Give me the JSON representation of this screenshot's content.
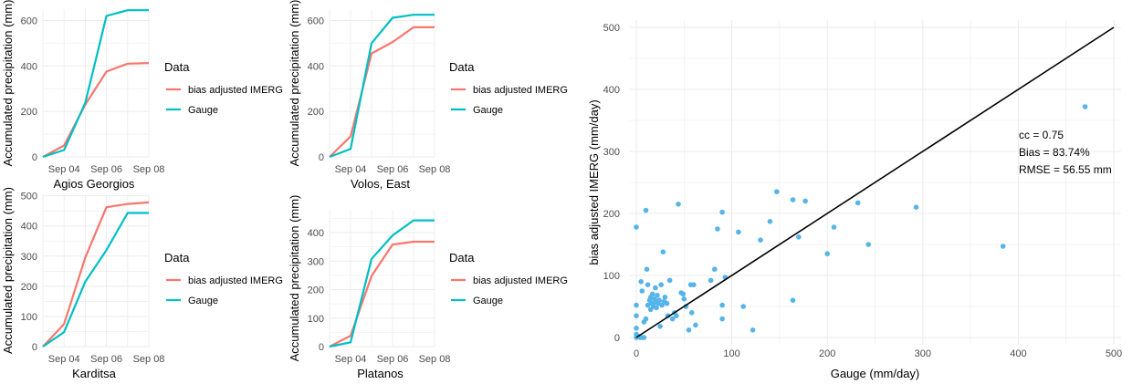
{
  "colors": {
    "imerg": "#f8766d",
    "gauge": "#00bfc4",
    "points": "#56b4e9",
    "line": "#000000",
    "grid": "#ebebeb"
  },
  "legend": {
    "title": "Data",
    "items": [
      "bias adjusted IMERG",
      "Gauge"
    ]
  },
  "chart_data": [
    {
      "type": "line",
      "title": "Agios Georgios",
      "ylabel": "Accumulated precipitation (mm)",
      "xlabel": "",
      "x": [
        "Sep 03",
        "Sep 04",
        "Sep 05",
        "Sep 06",
        "Sep 07",
        "Sep 08"
      ],
      "x_ticks": [
        "Sep 04",
        "Sep 06",
        "Sep 08"
      ],
      "y_ticks": [
        0,
        200,
        400,
        600
      ],
      "ylim": [
        0,
        650
      ],
      "series": [
        {
          "name": "bias adjusted IMERG",
          "values": [
            0,
            50,
            230,
            375,
            410,
            413
          ]
        },
        {
          "name": "Gauge",
          "values": [
            0,
            30,
            238,
            620,
            645,
            645
          ]
        }
      ]
    },
    {
      "type": "line",
      "title": "Volos, East",
      "ylabel": "Accumulated precipitation (mm)",
      "xlabel": "",
      "x": [
        "Sep 03",
        "Sep 04",
        "Sep 05",
        "Sep 06",
        "Sep 07",
        "Sep 08"
      ],
      "x_ticks": [
        "Sep 04",
        "Sep 06",
        "Sep 08"
      ],
      "y_ticks": [
        0,
        200,
        400,
        600
      ],
      "ylim": [
        0,
        650
      ],
      "series": [
        {
          "name": "bias adjusted IMERG",
          "values": [
            0,
            90,
            455,
            505,
            570,
            570
          ]
        },
        {
          "name": "Gauge",
          "values": [
            0,
            35,
            500,
            612,
            625,
            625
          ]
        }
      ]
    },
    {
      "type": "line",
      "title": "Karditsa",
      "ylabel": "Accumulated precipitation (mm)",
      "xlabel": "",
      "x": [
        "Sep 03",
        "Sep 04",
        "Sep 05",
        "Sep 06",
        "Sep 07",
        "Sep 08"
      ],
      "x_ticks": [
        "Sep 04",
        "Sep 06",
        "Sep 08"
      ],
      "y_ticks": [
        0,
        100,
        200,
        300,
        400,
        500
      ],
      "ylim": [
        0,
        505
      ],
      "series": [
        {
          "name": "bias adjusted IMERG",
          "values": [
            0,
            75,
            295,
            462,
            473,
            478
          ]
        },
        {
          "name": "Gauge",
          "values": [
            0,
            48,
            215,
            320,
            443,
            443
          ]
        }
      ]
    },
    {
      "type": "line",
      "title": "Platanos",
      "ylabel": "Accumulated precipitation (mm)",
      "xlabel": "",
      "x": [
        "Sep 03",
        "Sep 04",
        "Sep 05",
        "Sep 06",
        "Sep 07",
        "Sep 08"
      ],
      "x_ticks": [
        "Sep 04",
        "Sep 06",
        "Sep 08"
      ],
      "y_ticks": [
        0,
        100,
        200,
        300,
        400
      ],
      "ylim": [
        0,
        480
      ],
      "series": [
        {
          "name": "bias adjusted IMERG",
          "values": [
            0,
            38,
            248,
            358,
            368,
            368
          ]
        },
        {
          "name": "Gauge",
          "values": [
            0,
            15,
            308,
            390,
            443,
            443
          ]
        }
      ]
    },
    {
      "type": "scatter",
      "title": "",
      "xlabel": "Gauge (mm/day)",
      "ylabel": "bias adjusted IMERG (mm/day)",
      "xlim": [
        0,
        500
      ],
      "ylim": [
        0,
        500
      ],
      "x_ticks": [
        0,
        100,
        200,
        300,
        400,
        500
      ],
      "y_ticks": [
        0,
        100,
        200,
        300,
        400,
        500
      ],
      "reference_line": [
        [
          0,
          0
        ],
        [
          500,
          500
        ]
      ],
      "annotations": [
        "cc = 0.75",
        "Bias = 83.74%",
        "RMSE = 56.55 mm"
      ],
      "points": [
        [
          0,
          178
        ],
        [
          0,
          52
        ],
        [
          0,
          35
        ],
        [
          0,
          15
        ],
        [
          0,
          5
        ],
        [
          0,
          0
        ],
        [
          2,
          2
        ],
        [
          4,
          0
        ],
        [
          6,
          0
        ],
        [
          8,
          0
        ],
        [
          5,
          90
        ],
        [
          6,
          75
        ],
        [
          8,
          25
        ],
        [
          10,
          30
        ],
        [
          10,
          205
        ],
        [
          11,
          110
        ],
        [
          12,
          85
        ],
        [
          12,
          52
        ],
        [
          14,
          60
        ],
        [
          15,
          65
        ],
        [
          15,
          45
        ],
        [
          16,
          55
        ],
        [
          17,
          70
        ],
        [
          18,
          50
        ],
        [
          19,
          62
        ],
        [
          20,
          80
        ],
        [
          20,
          57
        ],
        [
          21,
          48
        ],
        [
          22,
          68
        ],
        [
          23,
          55
        ],
        [
          24,
          60
        ],
        [
          25,
          18
        ],
        [
          26,
          85
        ],
        [
          27,
          52
        ],
        [
          28,
          138
        ],
        [
          29,
          58
        ],
        [
          30,
          65
        ],
        [
          32,
          55
        ],
        [
          33,
          35
        ],
        [
          35,
          92
        ],
        [
          38,
          30
        ],
        [
          40,
          40
        ],
        [
          42,
          35
        ],
        [
          44,
          215
        ],
        [
          47,
          72
        ],
        [
          49,
          70
        ],
        [
          50,
          62
        ],
        [
          52,
          50
        ],
        [
          55,
          12
        ],
        [
          57,
          85
        ],
        [
          58,
          40
        ],
        [
          60,
          85
        ],
        [
          62,
          20
        ],
        [
          78,
          92
        ],
        [
          82,
          110
        ],
        [
          85,
          175
        ],
        [
          90,
          202
        ],
        [
          90,
          52
        ],
        [
          90,
          30
        ],
        [
          93,
          97
        ],
        [
          107,
          170
        ],
        [
          112,
          50
        ],
        [
          122,
          12
        ],
        [
          130,
          157
        ],
        [
          140,
          187
        ],
        [
          147,
          235
        ],
        [
          164,
          222
        ],
        [
          164,
          60
        ],
        [
          170,
          162
        ],
        [
          177,
          220
        ],
        [
          200,
          135
        ],
        [
          207,
          178
        ],
        [
          232,
          217
        ],
        [
          243,
          150
        ],
        [
          293,
          210
        ],
        [
          384,
          147
        ],
        [
          470,
          372
        ]
      ]
    }
  ]
}
